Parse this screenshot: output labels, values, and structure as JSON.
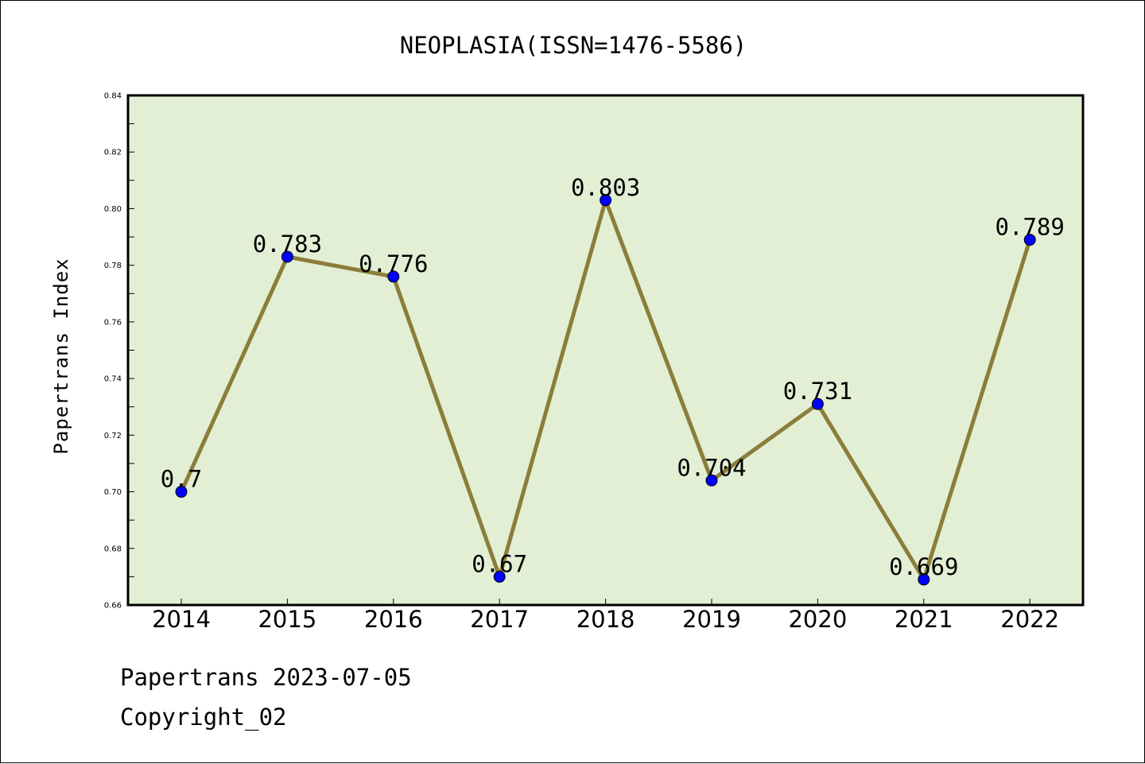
{
  "chart_data": {
    "type": "line",
    "title": "NEOPLASIA(ISSN=1476-5586)",
    "xlabel": "",
    "ylabel": "Papertrans Index",
    "categories": [
      "2014",
      "2015",
      "2016",
      "2017",
      "2018",
      "2019",
      "2020",
      "2021",
      "2022"
    ],
    "values": [
      0.7,
      0.783,
      0.776,
      0.67,
      0.803,
      0.704,
      0.731,
      0.669,
      0.789
    ],
    "data_labels": [
      "0.7",
      "0.783",
      "0.776",
      "0.67",
      "0.803",
      "0.704",
      "0.731",
      "0.669",
      "0.789"
    ],
    "ylim": [
      0.66,
      0.84
    ],
    "yticks": [
      "0.66",
      "0.68",
      "0.70",
      "0.72",
      "0.74",
      "0.76",
      "0.78",
      "0.80",
      "0.82",
      "0.84"
    ],
    "grid": false,
    "colors": {
      "line": "#8b7d3a",
      "marker": "#0000ff",
      "plot_background": "#e2efd5"
    }
  },
  "footer": {
    "date_line": "Papertrans 2023-07-05",
    "copyright_line": "Copyright_02"
  }
}
